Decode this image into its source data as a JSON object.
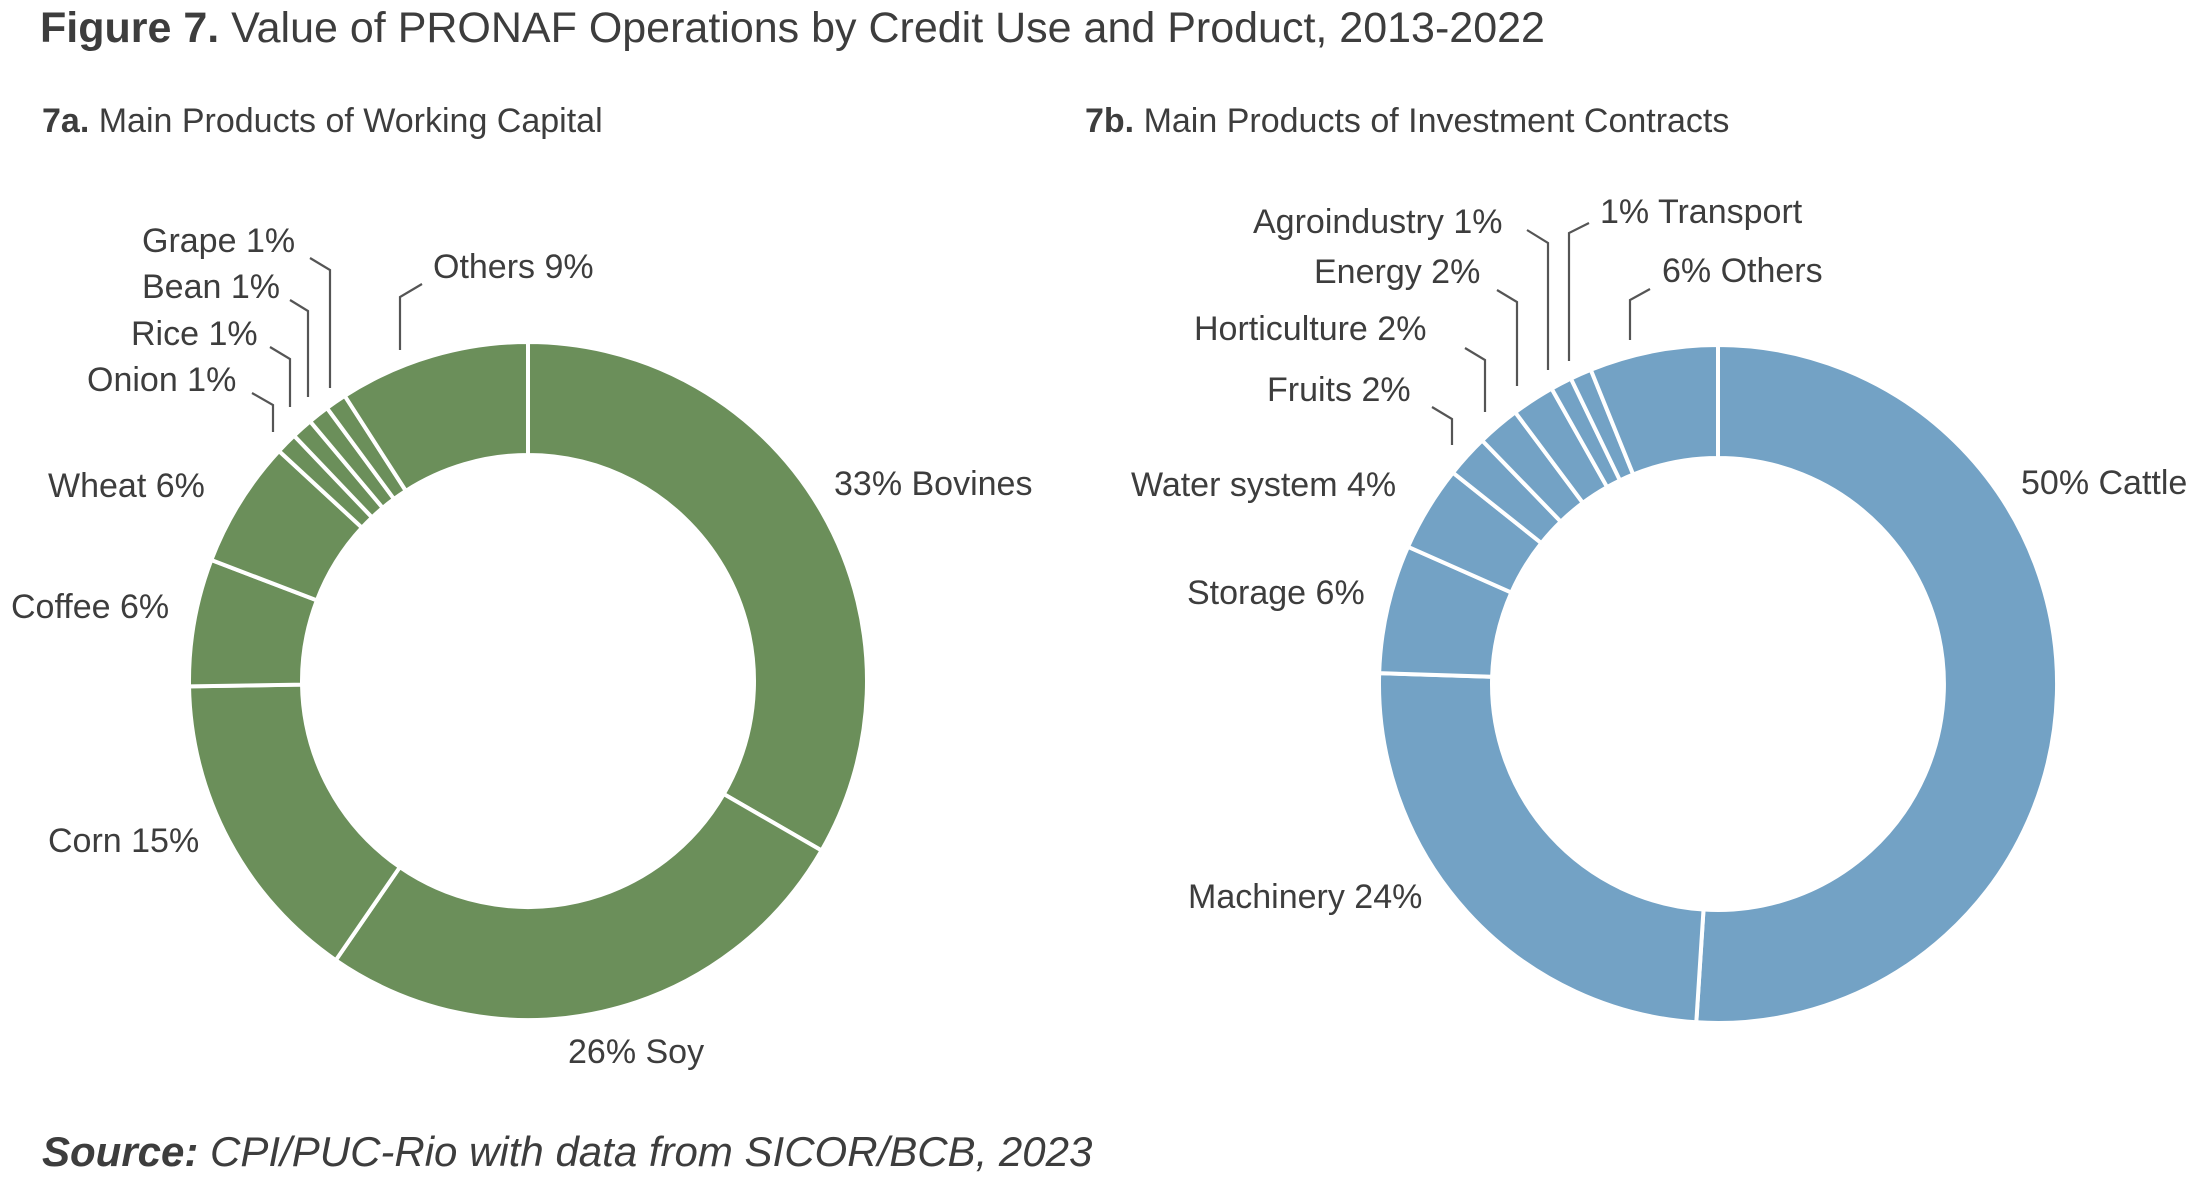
{
  "figure": {
    "label": "Figure 7.",
    "title": "Value of PRONAF Operations by Credit Use and Product, 2013-2022"
  },
  "source": {
    "label": "Source:",
    "text": "CPI/PUC-Rio with data from SICOR/BCB, 2023"
  },
  "colors": {
    "panel_a_fill": "#6b8f5a",
    "panel_b_fill": "#73a2c5",
    "separator": "#ffffff",
    "leader_line": "#555555",
    "text": "#3d3d3d"
  },
  "chart_data": [
    {
      "type": "pie",
      "variant": "donut",
      "panel_label": "7a.",
      "title": "Main Products of Working Capital",
      "unit": "%",
      "direction": "clockwise from 12 o'clock",
      "slices": [
        {
          "name": "Bovines",
          "value": 33,
          "label": "33% Bovines"
        },
        {
          "name": "Soy",
          "value": 26,
          "label": "26% Soy"
        },
        {
          "name": "Corn",
          "value": 15,
          "label": "Corn 15%"
        },
        {
          "name": "Coffee",
          "value": 6,
          "label": "Coffee 6%"
        },
        {
          "name": "Wheat",
          "value": 6,
          "label": "Wheat 6%"
        },
        {
          "name": "Onion",
          "value": 1,
          "label": "Onion 1%"
        },
        {
          "name": "Rice",
          "value": 1,
          "label": "Rice 1%"
        },
        {
          "name": "Bean",
          "value": 1,
          "label": "Bean 1%"
        },
        {
          "name": "Grape",
          "value": 1,
          "label": "Grape 1%"
        },
        {
          "name": "Others",
          "value": 9,
          "label": "Others 9%"
        }
      ]
    },
    {
      "type": "pie",
      "variant": "donut",
      "panel_label": "7b.",
      "title": "Main Products of Investment Contracts",
      "unit": "%",
      "direction": "clockwise from 12 o'clock",
      "slices": [
        {
          "name": "Cattle",
          "value": 50,
          "label": "50% Cattle"
        },
        {
          "name": "Machinery",
          "value": 24,
          "label": "Machinery 24%"
        },
        {
          "name": "Storage",
          "value": 6,
          "label": "Storage 6%"
        },
        {
          "name": "Water system",
          "value": 4,
          "label": "Water system 4%"
        },
        {
          "name": "Fruits",
          "value": 2,
          "label": "Fruits 2%"
        },
        {
          "name": "Horticulture",
          "value": 2,
          "label": "Horticulture 2%"
        },
        {
          "name": "Energy",
          "value": 2,
          "label": "Energy 2%"
        },
        {
          "name": "Agroindustry",
          "value": 1,
          "label": "Agroindustry 1%"
        },
        {
          "name": "Transport",
          "value": 1,
          "label": "1% Transport"
        },
        {
          "name": "Others",
          "value": 6,
          "label": "6% Others"
        }
      ]
    }
  ]
}
